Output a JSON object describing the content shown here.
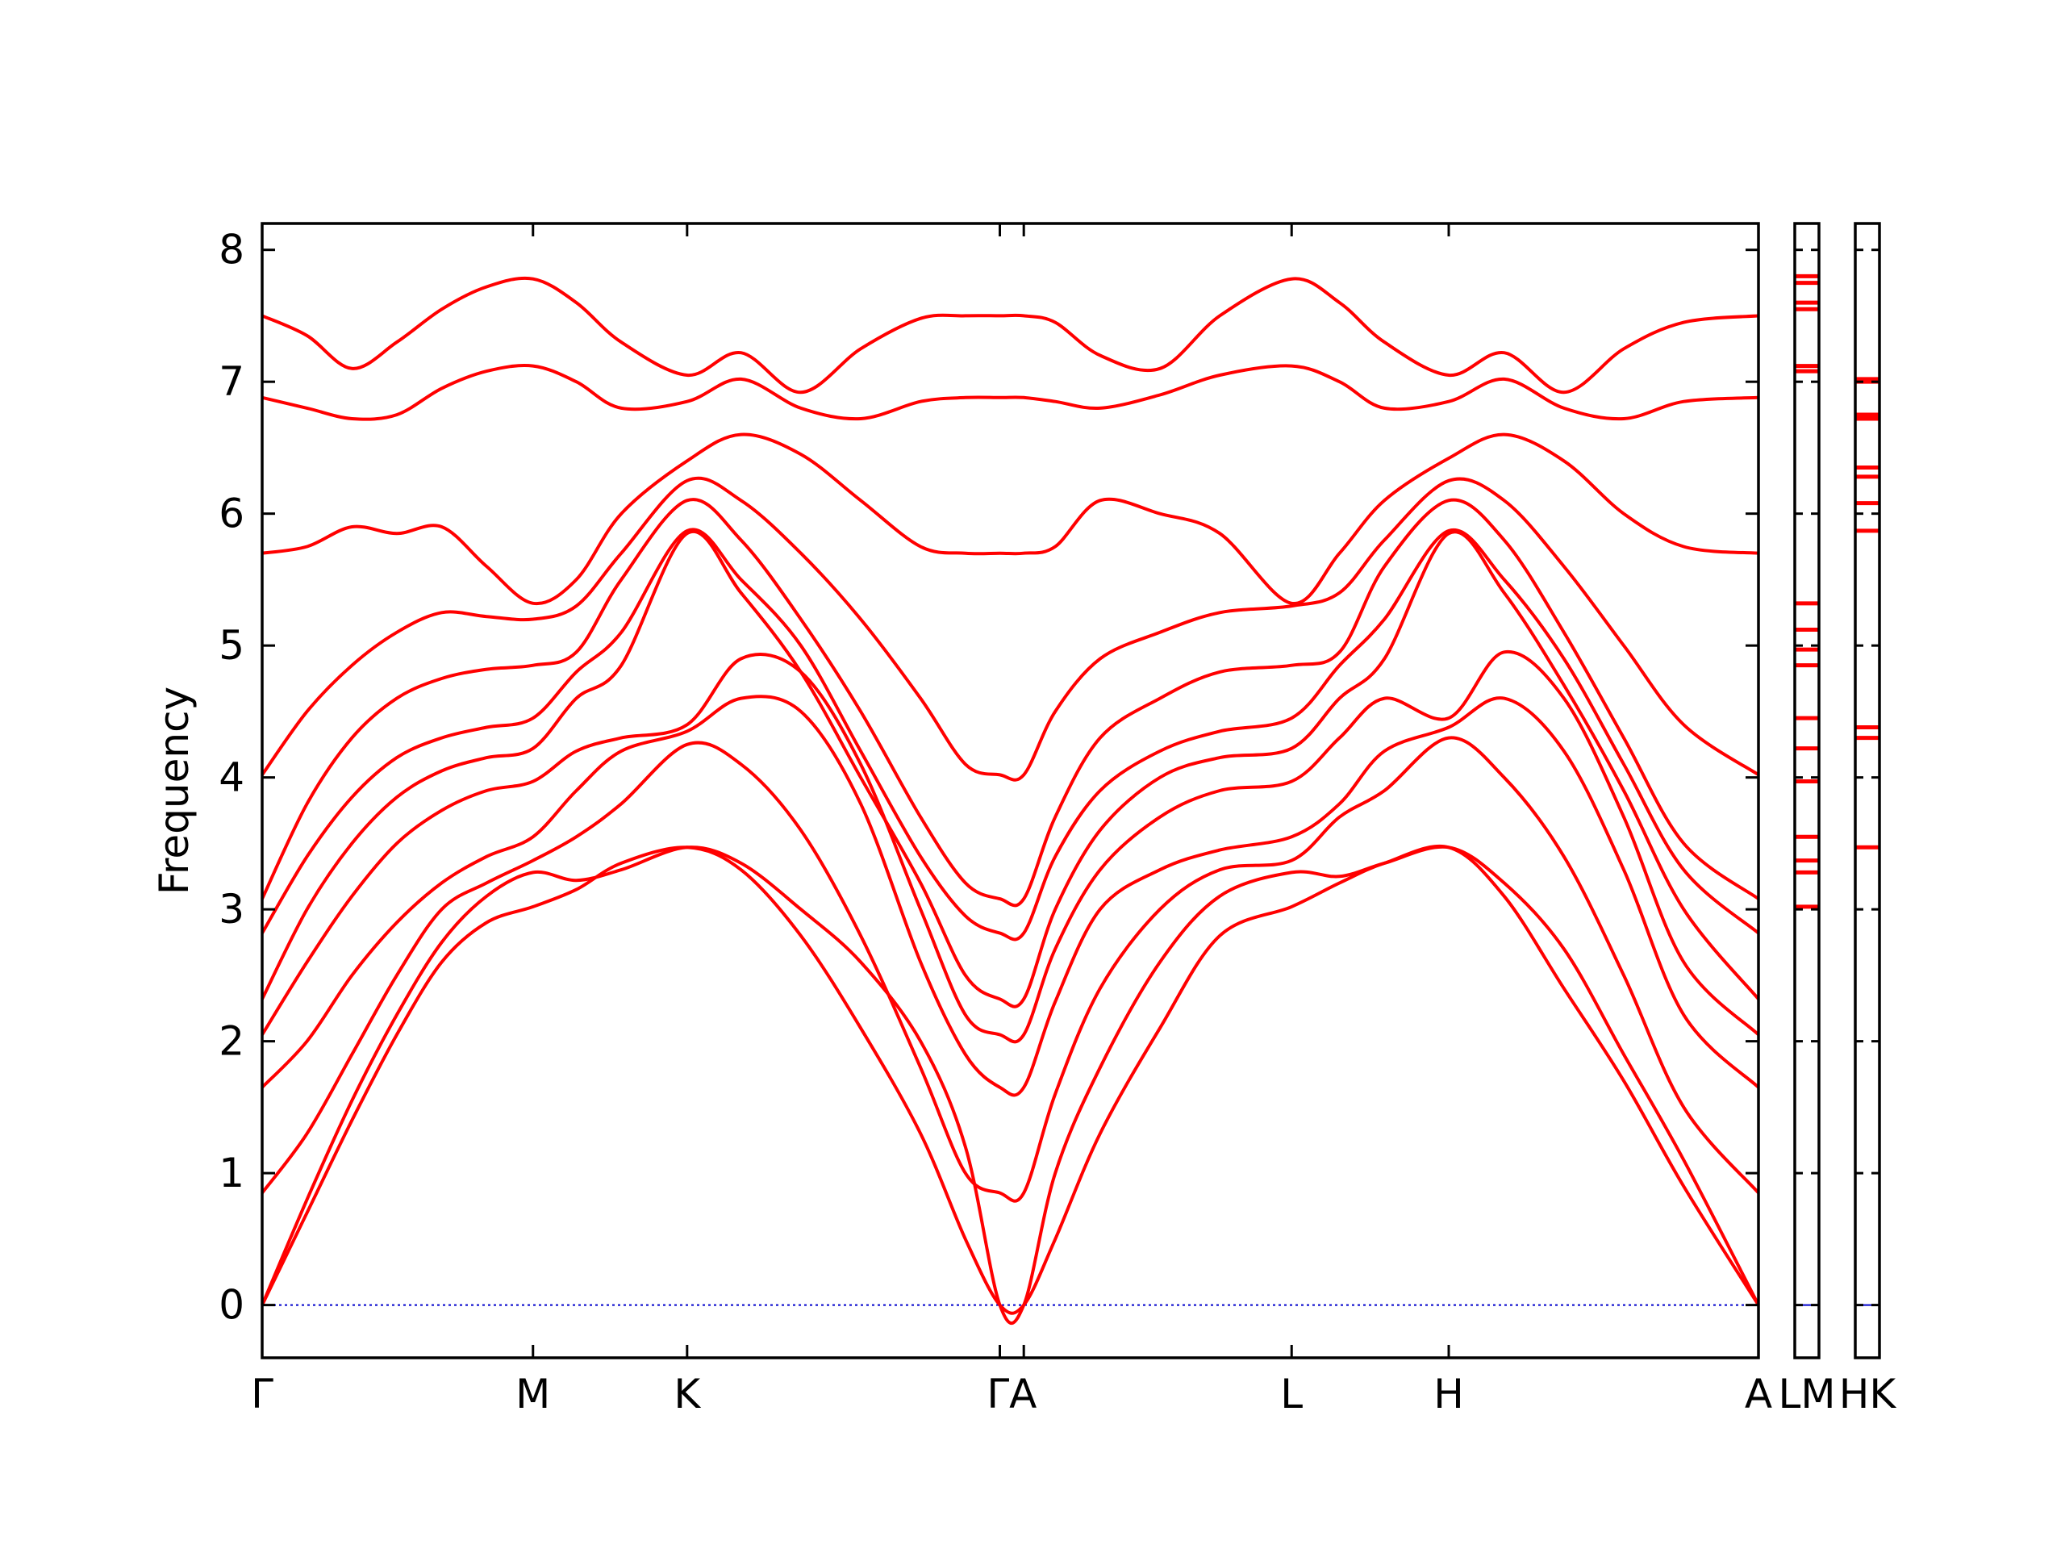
{
  "colors": {
    "bands": "#ff0000",
    "zero_line": "#0000cc",
    "axes": "#000000"
  },
  "chart_data": {
    "type": "line",
    "title": "",
    "xlabel": "",
    "ylabel": "Frequency",
    "ylim": [
      -0.4,
      8.2
    ],
    "yticks": [
      0,
      1,
      2,
      3,
      4,
      5,
      6,
      7,
      8
    ],
    "y_tick_labels": [
      "0",
      "1",
      "2",
      "3",
      "4",
      "5",
      "6",
      "7",
      "8"
    ],
    "grid": false,
    "legend": "none",
    "path_labels": [
      "Γ",
      "M",
      "K",
      "Γ",
      "A",
      "L",
      "H",
      "A"
    ],
    "path_positions": [
      0,
      1.81,
      2.84,
      4.93,
      5.09,
      6.88,
      7.93,
      10.0
    ],
    "mode_label": "LM",
    "mode_label_2": "HK",
    "x_left_label": "Γ",
    "x_labels_center": [
      "M",
      "K",
      "ΓA",
      "L",
      "H",
      "A"
    ],
    "band_samples_x": [
      0,
      0.3,
      0.6,
      0.9,
      1.2,
      1.5,
      1.81,
      2.1,
      2.4,
      2.84,
      3.2,
      3.6,
      4.0,
      4.4,
      4.7,
      4.93,
      5.09,
      5.3,
      5.6,
      6.0,
      6.4,
      6.88,
      7.2,
      7.5,
      7.93,
      8.3,
      8.7,
      9.1,
      9.5,
      10.0
    ],
    "series": [
      {
        "values": [
          0,
          0.7,
          1.4,
          2.05,
          2.6,
          2.9,
          3.02,
          3.15,
          3.35,
          3.47,
          3.3,
          2.8,
          2.1,
          1.3,
          0.5,
          0,
          0,
          0.5,
          1.3,
          2.1,
          2.8,
          3.02,
          3.2,
          3.35,
          3.47,
          3.1,
          2.4,
          1.7,
          0.9,
          0
        ]
      },
      {
        "values": [
          0,
          0.8,
          1.55,
          2.2,
          2.75,
          3.1,
          3.28,
          3.22,
          3.3,
          3.47,
          3.35,
          3.0,
          2.6,
          2.0,
          1.2,
          0,
          0,
          1.0,
          1.8,
          2.6,
          3.1,
          3.28,
          3.25,
          3.35,
          3.47,
          3.2,
          2.7,
          1.9,
          1.1,
          0
        ]
      },
      {
        "values": [
          0.85,
          1.3,
          1.9,
          2.5,
          3.0,
          3.2,
          3.37,
          3.55,
          3.8,
          4.25,
          4.1,
          3.6,
          2.8,
          1.8,
          1.0,
          0.85,
          0.85,
          1.6,
          2.4,
          3.0,
          3.3,
          3.37,
          3.7,
          3.9,
          4.3,
          4.0,
          3.4,
          2.5,
          1.5,
          0.85
        ]
      },
      {
        "values": [
          1.65,
          2.0,
          2.5,
          2.9,
          3.2,
          3.4,
          3.55,
          3.9,
          4.2,
          4.35,
          4.6,
          4.5,
          3.8,
          2.6,
          1.9,
          1.65,
          1.65,
          2.3,
          3.0,
          3.3,
          3.45,
          3.55,
          3.8,
          4.2,
          4.38,
          4.6,
          4.2,
          3.3,
          2.2,
          1.65
        ]
      },
      {
        "values": [
          2.05,
          2.6,
          3.1,
          3.5,
          3.75,
          3.9,
          3.97,
          4.2,
          4.3,
          4.4,
          4.9,
          4.8,
          4.1,
          3.0,
          2.2,
          2.05,
          2.05,
          2.7,
          3.3,
          3.7,
          3.9,
          3.97,
          4.3,
          4.6,
          4.45,
          4.95,
          4.6,
          3.7,
          2.6,
          2.05
        ]
      },
      {
        "values": [
          2.32,
          3.0,
          3.5,
          3.85,
          4.05,
          4.15,
          4.22,
          4.6,
          4.85,
          5.85,
          5.4,
          4.8,
          4.0,
          3.2,
          2.5,
          2.32,
          2.32,
          3.0,
          3.6,
          4.0,
          4.15,
          4.22,
          4.6,
          4.9,
          5.85,
          5.4,
          4.7,
          3.9,
          3.0,
          2.32
        ]
      },
      {
        "values": [
          2.82,
          3.4,
          3.85,
          4.15,
          4.3,
          4.38,
          4.45,
          4.8,
          5.1,
          5.87,
          5.5,
          5.0,
          4.2,
          3.4,
          2.95,
          2.82,
          2.82,
          3.4,
          3.9,
          4.2,
          4.35,
          4.45,
          4.85,
          5.2,
          5.87,
          5.5,
          4.9,
          4.1,
          3.3,
          2.82
        ]
      },
      {
        "values": [
          3.08,
          3.8,
          4.3,
          4.6,
          4.75,
          4.82,
          4.85,
          4.95,
          5.5,
          6.1,
          5.8,
          5.2,
          4.5,
          3.7,
          3.2,
          3.08,
          3.08,
          3.7,
          4.3,
          4.6,
          4.8,
          4.85,
          4.95,
          5.6,
          6.1,
          5.8,
          5.1,
          4.3,
          3.5,
          3.08
        ]
      },
      {
        "values": [
          4.02,
          4.5,
          4.85,
          5.1,
          5.25,
          5.22,
          5.2,
          5.3,
          5.7,
          6.25,
          6.1,
          5.7,
          5.2,
          4.6,
          4.1,
          4.02,
          4.02,
          4.5,
          4.9,
          5.1,
          5.25,
          5.3,
          5.4,
          5.8,
          6.25,
          6.1,
          5.6,
          5.0,
          4.4,
          4.02
        ]
      },
      {
        "values": [
          5.7,
          5.75,
          5.9,
          5.85,
          5.9,
          5.6,
          5.32,
          5.5,
          6.0,
          6.4,
          6.6,
          6.45,
          6.1,
          5.75,
          5.7,
          5.7,
          5.7,
          5.75,
          6.1,
          6.0,
          5.85,
          5.32,
          5.7,
          6.1,
          6.42,
          6.6,
          6.4,
          6.0,
          5.75,
          5.7
        ]
      },
      {
        "values": [
          6.88,
          6.8,
          6.72,
          6.75,
          6.95,
          7.08,
          7.12,
          7.0,
          6.8,
          6.85,
          7.02,
          6.8,
          6.72,
          6.85,
          6.88,
          6.88,
          6.88,
          6.85,
          6.8,
          6.9,
          7.05,
          7.12,
          7.0,
          6.8,
          6.85,
          7.02,
          6.8,
          6.72,
          6.85,
          6.88
        ]
      },
      {
        "values": [
          7.5,
          7.35,
          7.1,
          7.3,
          7.55,
          7.72,
          7.78,
          7.6,
          7.3,
          7.05,
          7.22,
          6.92,
          7.25,
          7.48,
          7.5,
          7.5,
          7.5,
          7.45,
          7.2,
          7.1,
          7.5,
          7.78,
          7.6,
          7.3,
          7.05,
          7.22,
          6.92,
          7.25,
          7.45,
          7.5
        ]
      }
    ]
  },
  "side_panels": [
    {
      "label": "LM",
      "levels": [
        0,
        3.02,
        3.28,
        3.37,
        3.55,
        3.97,
        4.22,
        4.45,
        4.85,
        4.97,
        5.12,
        5.32,
        7.08,
        7.12,
        7.55,
        7.6,
        7.75,
        7.8
      ]
    },
    {
      "label": "HK",
      "levels": [
        0,
        3.47,
        4.3,
        4.38,
        5.87,
        6.08,
        6.28,
        6.35,
        6.72,
        6.75,
        7.0,
        7.02
      ]
    }
  ]
}
